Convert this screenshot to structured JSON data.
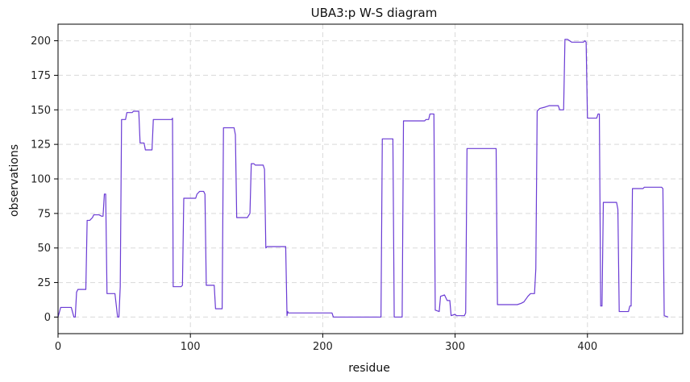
{
  "chart_data": {
    "type": "line",
    "title": "UBA3:p W-S diagram",
    "xlabel": "residue",
    "ylabel": "observations",
    "xlim": [
      0,
      472
    ],
    "ylim": [
      -12,
      212
    ],
    "xticks": [
      0,
      100,
      200,
      300,
      400
    ],
    "yticks": [
      0,
      25,
      50,
      75,
      100,
      125,
      150,
      175,
      200
    ],
    "grid": true,
    "line_color": "#6a3bd4",
    "series": [
      {
        "points": [
          [
            0,
            0
          ],
          [
            2,
            7
          ],
          [
            10,
            7
          ],
          [
            12,
            0
          ],
          [
            13,
            0
          ],
          [
            14,
            18
          ],
          [
            15,
            20
          ],
          [
            21,
            20
          ],
          [
            22,
            70
          ],
          [
            24,
            70
          ],
          [
            26,
            72
          ],
          [
            27,
            74
          ],
          [
            31,
            74
          ],
          [
            33,
            73
          ],
          [
            34,
            73
          ],
          [
            35,
            89
          ],
          [
            36,
            89
          ],
          [
            37,
            17
          ],
          [
            43,
            17
          ],
          [
            45,
            0
          ],
          [
            46,
            0
          ],
          [
            47,
            22
          ],
          [
            48,
            143
          ],
          [
            51,
            143
          ],
          [
            52,
            148
          ],
          [
            56,
            148
          ],
          [
            57,
            149
          ],
          [
            61,
            149
          ],
          [
            62,
            126
          ],
          [
            65,
            126
          ],
          [
            66,
            121
          ],
          [
            71,
            121
          ],
          [
            72,
            143
          ],
          [
            86,
            143
          ],
          [
            86.5,
            144
          ],
          [
            87,
            22
          ],
          [
            93,
            22
          ],
          [
            94,
            23
          ],
          [
            95,
            86
          ],
          [
            104,
            86
          ],
          [
            105,
            89
          ],
          [
            107,
            91
          ],
          [
            110,
            91
          ],
          [
            111,
            89
          ],
          [
            112,
            23
          ],
          [
            118,
            23
          ],
          [
            119,
            6
          ],
          [
            124,
            6
          ],
          [
            125,
            137
          ],
          [
            133,
            137
          ],
          [
            134,
            132
          ],
          [
            135,
            72
          ],
          [
            143,
            72
          ],
          [
            145,
            75
          ],
          [
            146,
            111
          ],
          [
            148,
            111
          ],
          [
            149,
            110
          ],
          [
            155,
            110
          ],
          [
            156,
            107
          ],
          [
            157,
            50
          ],
          [
            158,
            51
          ],
          [
            172,
            51
          ],
          [
            173,
            1
          ],
          [
            173.5,
            4
          ],
          [
            174,
            3
          ],
          [
            207,
            3
          ],
          [
            208,
            0
          ],
          [
            244,
            0
          ],
          [
            245,
            129
          ],
          [
            253,
            129
          ],
          [
            254,
            0
          ],
          [
            260,
            0
          ],
          [
            261,
            142
          ],
          [
            277,
            142
          ],
          [
            278,
            143
          ],
          [
            280,
            143
          ],
          [
            281,
            147
          ],
          [
            284,
            147
          ],
          [
            285,
            5
          ],
          [
            288,
            4
          ],
          [
            289,
            15
          ],
          [
            292,
            16
          ],
          [
            294,
            12
          ],
          [
            296,
            12
          ],
          [
            297,
            1
          ],
          [
            300,
            2
          ],
          [
            301,
            1
          ],
          [
            307,
            1
          ],
          [
            308,
            3
          ],
          [
            309,
            122
          ],
          [
            331,
            122
          ],
          [
            332,
            9
          ],
          [
            347,
            9
          ],
          [
            350,
            10
          ],
          [
            352,
            11
          ],
          [
            355,
            15
          ],
          [
            357,
            17
          ],
          [
            360,
            17
          ],
          [
            361,
            35
          ],
          [
            362,
            149
          ],
          [
            364,
            151
          ],
          [
            368,
            152
          ],
          [
            371,
            153
          ],
          [
            378,
            153
          ],
          [
            379,
            150
          ],
          [
            382,
            150
          ],
          [
            383,
            201
          ],
          [
            385,
            201
          ],
          [
            388,
            199
          ],
          [
            397,
            199
          ],
          [
            398,
            200
          ],
          [
            399,
            199
          ],
          [
            400,
            144
          ],
          [
            407,
            144
          ],
          [
            408,
            147
          ],
          [
            409,
            147
          ],
          [
            410,
            8
          ],
          [
            411,
            8
          ],
          [
            412,
            83
          ],
          [
            422,
            83
          ],
          [
            423,
            78
          ],
          [
            424,
            4
          ],
          [
            431,
            4
          ],
          [
            432,
            8
          ],
          [
            433,
            8
          ],
          [
            434,
            93
          ],
          [
            442,
            93
          ],
          [
            443,
            94
          ],
          [
            456,
            94
          ],
          [
            457,
            93
          ],
          [
            458,
            1
          ],
          [
            461,
            0
          ]
        ]
      }
    ]
  }
}
